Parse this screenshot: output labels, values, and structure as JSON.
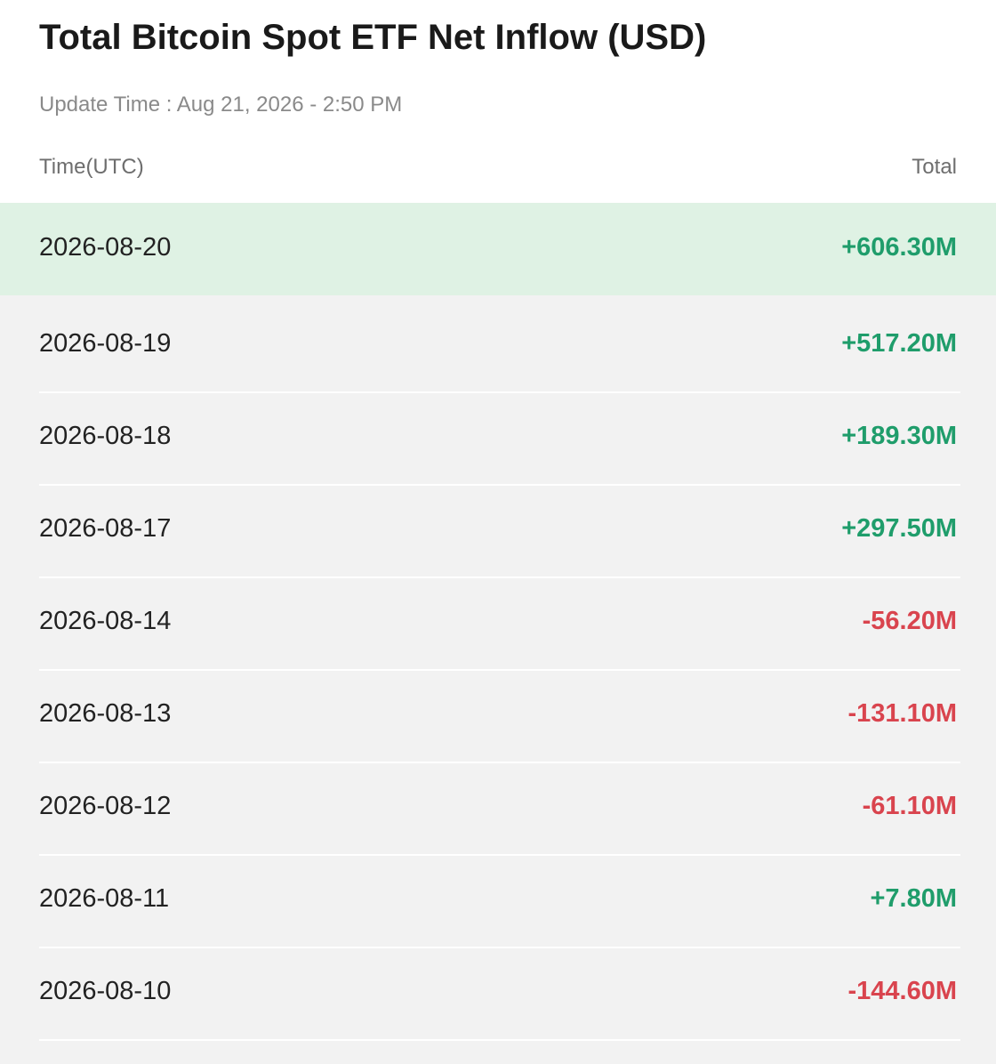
{
  "header": {
    "title": "Total Bitcoin Spot ETF Net Inflow (USD)",
    "update_time": "Update Time : Aug 21, 2026 - 2:50 PM"
  },
  "table": {
    "columns": [
      "Time(UTC)",
      "Total"
    ],
    "rows": [
      [
        "2026-08-20",
        "+606.30M"
      ],
      [
        "2026-08-19",
        "+517.20M"
      ],
      [
        "2026-08-18",
        "+189.30M"
      ],
      [
        "2026-08-17",
        "+297.50M"
      ],
      [
        "2026-08-14",
        "-56.20M"
      ],
      [
        "2026-08-13",
        "-131.10M"
      ],
      [
        "2026-08-12",
        "-61.10M"
      ],
      [
        "2026-08-11",
        "+7.80M"
      ],
      [
        "2026-08-10",
        "-144.60M"
      ]
    ]
  }
}
